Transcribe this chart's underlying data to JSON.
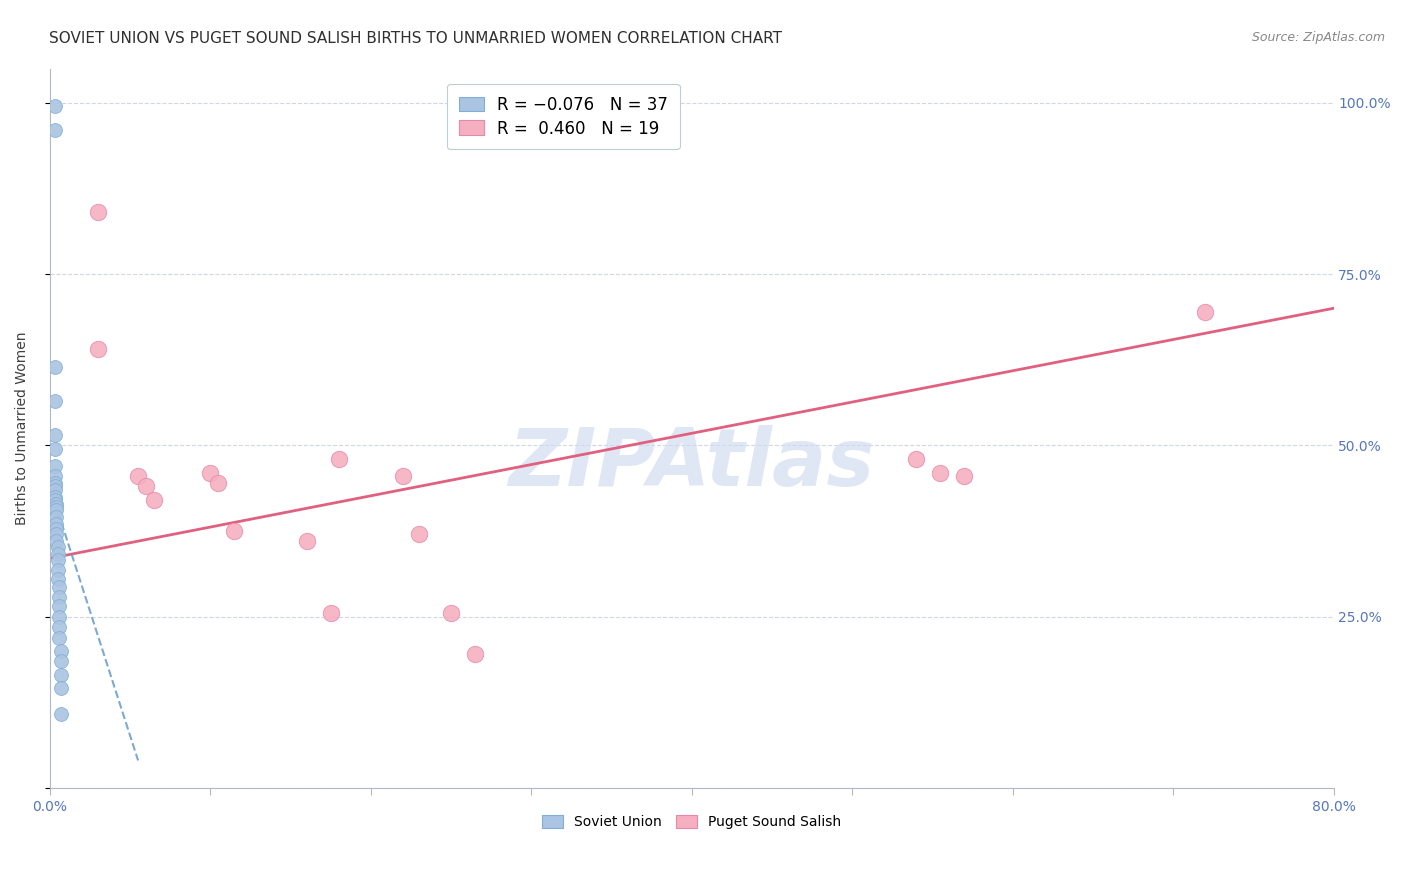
{
  "title": "SOVIET UNION VS PUGET SOUND SALISH BIRTHS TO UNMARRIED WOMEN CORRELATION CHART",
  "source": "Source: ZipAtlas.com",
  "ylabel": "Births to Unmarried Women",
  "ytick_labels": [
    "",
    "25.0%",
    "50.0%",
    "75.0%",
    "100.0%"
  ],
  "ytick_values": [
    0,
    0.25,
    0.5,
    0.75,
    1.0
  ],
  "legend_blue_label": "R = -0.076   N = 37",
  "legend_pink_label": "R =  0.460   N = 19",
  "xlim": [
    0.0,
    0.8
  ],
  "ylim": [
    0.0,
    1.05
  ],
  "blue_scatter_x": [
    0.003,
    0.003,
    0.003,
    0.003,
    0.003,
    0.003,
    0.003,
    0.003,
    0.003,
    0.003,
    0.003,
    0.003,
    0.003,
    0.004,
    0.004,
    0.004,
    0.004,
    0.004,
    0.004,
    0.004,
    0.004,
    0.005,
    0.005,
    0.005,
    0.005,
    0.005,
    0.006,
    0.006,
    0.006,
    0.006,
    0.006,
    0.006,
    0.007,
    0.007,
    0.007,
    0.007,
    0.007
  ],
  "blue_scatter_y": [
    0.995,
    0.96,
    0.615,
    0.565,
    0.515,
    0.495,
    0.47,
    0.455,
    0.445,
    0.44,
    0.435,
    0.425,
    0.42,
    0.415,
    0.41,
    0.405,
    0.395,
    0.385,
    0.378,
    0.37,
    0.36,
    0.352,
    0.342,
    0.332,
    0.318,
    0.305,
    0.293,
    0.278,
    0.265,
    0.25,
    0.235,
    0.218,
    0.2,
    0.185,
    0.165,
    0.145,
    0.108
  ],
  "pink_scatter_x": [
    0.03,
    0.03,
    0.055,
    0.06,
    0.065,
    0.1,
    0.105,
    0.115,
    0.16,
    0.175,
    0.18,
    0.22,
    0.23,
    0.25,
    0.265,
    0.54,
    0.555,
    0.57,
    0.72
  ],
  "pink_scatter_y": [
    0.84,
    0.64,
    0.455,
    0.44,
    0.42,
    0.46,
    0.445,
    0.375,
    0.36,
    0.255,
    0.48,
    0.455,
    0.37,
    0.255,
    0.195,
    0.48,
    0.46,
    0.455,
    0.695
  ],
  "pink_trend_x0": 0.0,
  "pink_trend_x1": 0.8,
  "pink_trend_y0": 0.335,
  "pink_trend_y1": 0.7,
  "blue_trend_x0": 0.003,
  "blue_trend_x1": 0.055,
  "blue_trend_y0": 0.418,
  "blue_trend_y1": 0.04,
  "blue_color": "#aac4e2",
  "blue_edge_color": "#80aed4",
  "pink_color": "#f5afc0",
  "pink_edge_color": "#e888a8",
  "blue_line_color": "#6699cc",
  "pink_line_color": "#e06080",
  "watermark": "ZIPAtlas",
  "watermark_color": "#ccd8ee",
  "grid_color": "#d0d8e8",
  "background_color": "#ffffff",
  "title_fontsize": 11,
  "axis_label_fontsize": 10,
  "tick_fontsize": 10,
  "marker_size": 100
}
